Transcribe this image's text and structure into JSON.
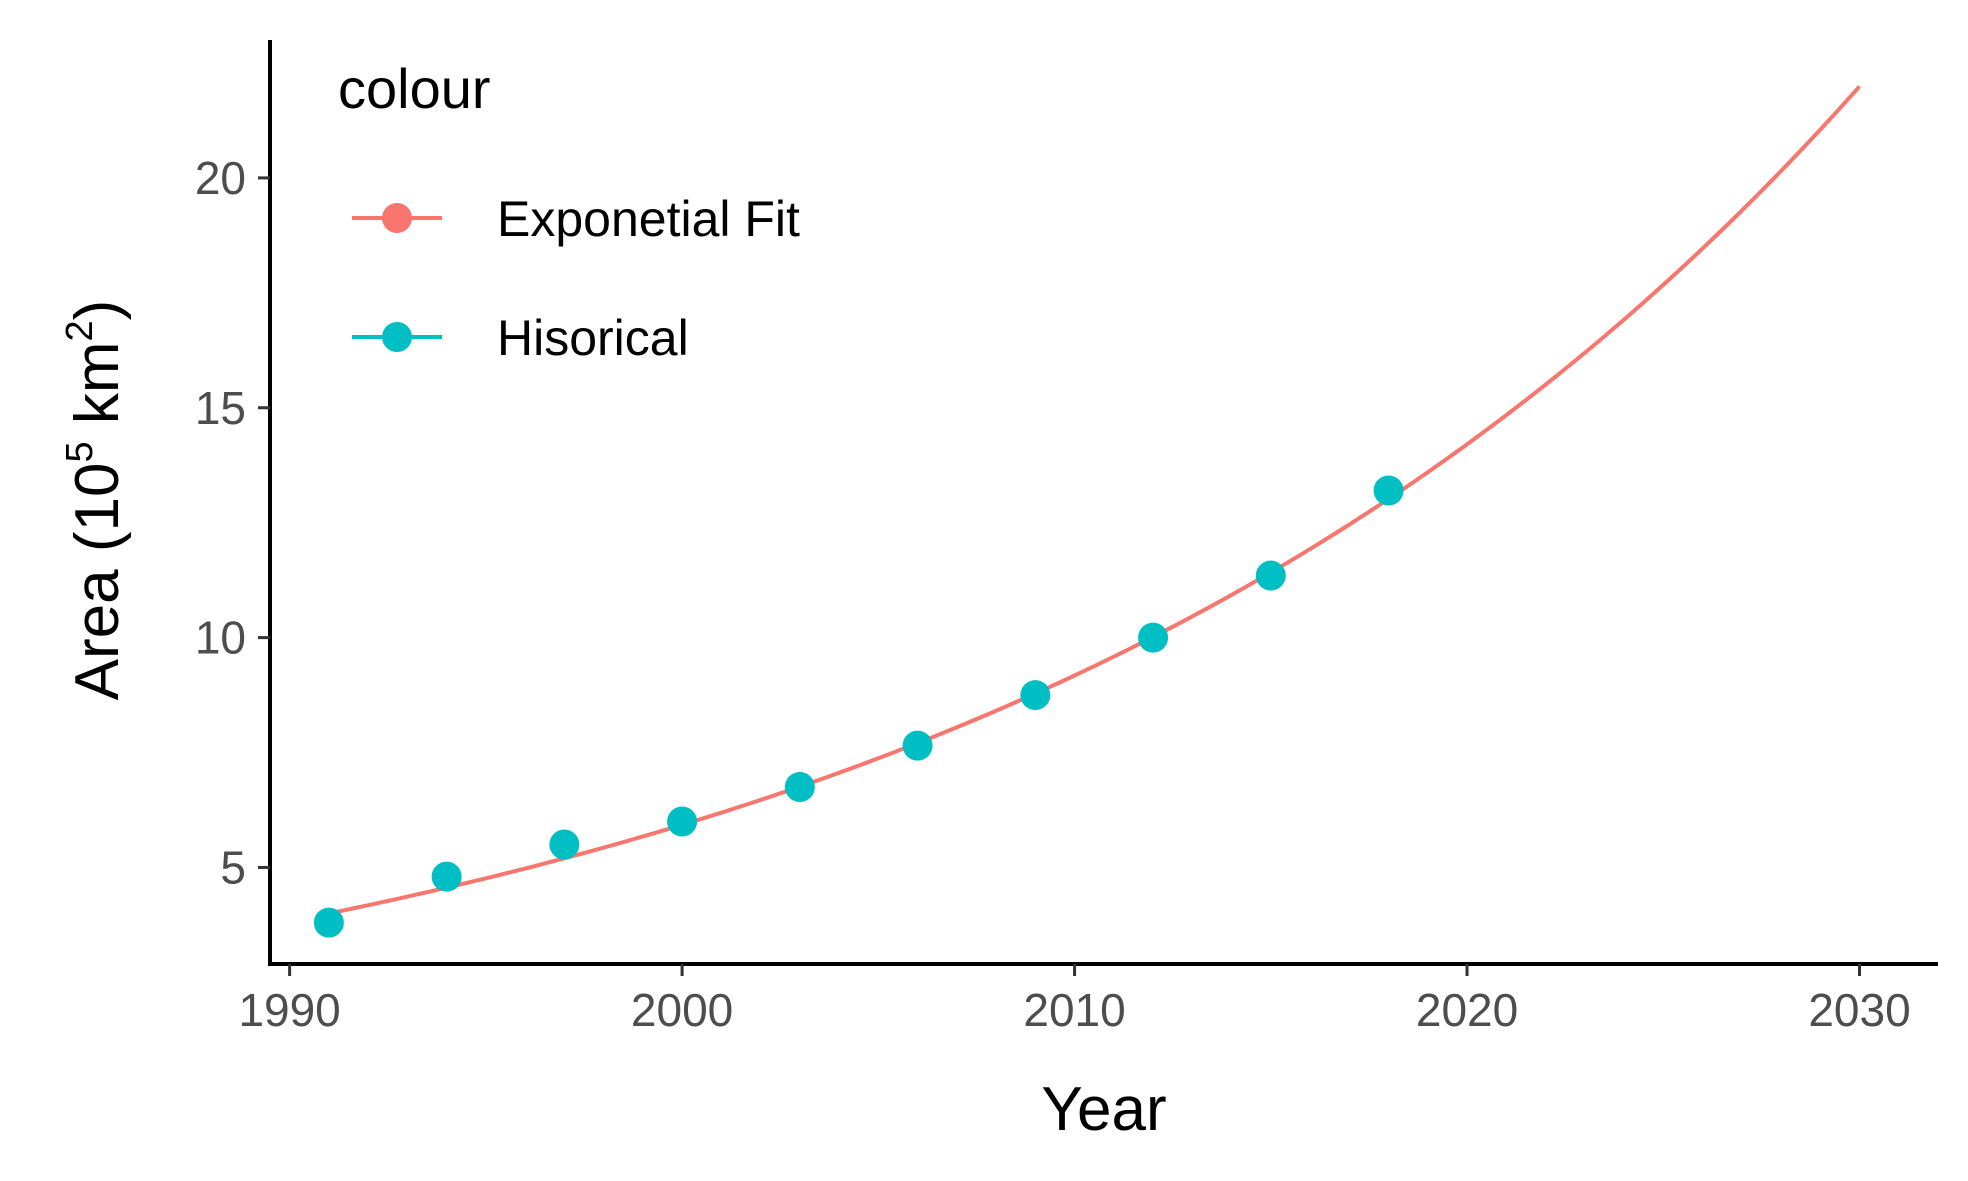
{
  "chart_data": {
    "type": "line",
    "xlabel": "Year",
    "ylabel": {
      "prefix": "Area (10",
      "exp1": "5",
      "middle": " km",
      "exp2": "2",
      "suffix": ")"
    },
    "xlim": [
      1989.5,
      2032
    ],
    "ylim": [
      2.9,
      23.0
    ],
    "x_ticks": [
      1990,
      2000,
      2010,
      2020,
      2030
    ],
    "y_ticks": [
      5,
      10,
      15,
      20
    ],
    "grid": false,
    "legend": {
      "title": "colour",
      "position": "top-left",
      "entries": [
        "Exponetial Fit",
        "Hisorical"
      ]
    },
    "series": [
      {
        "name": "Exponetial Fit",
        "kind": "line",
        "color": "#f8766d",
        "model": {
          "form": "exponential",
          "x0": 1991,
          "a": 4.0,
          "b": 0.0437
        },
        "x_range": [
          1991,
          2030
        ]
      },
      {
        "name": "Hisorical",
        "kind": "points",
        "color": "#00bfc4",
        "x": [
          1991,
          1994,
          1997,
          2000,
          2003,
          2006,
          2009,
          2012,
          2015,
          2018
        ],
        "y": [
          3.8,
          4.8,
          5.5,
          6.0,
          6.75,
          7.65,
          8.75,
          10.0,
          11.35,
          13.2
        ]
      }
    ]
  }
}
